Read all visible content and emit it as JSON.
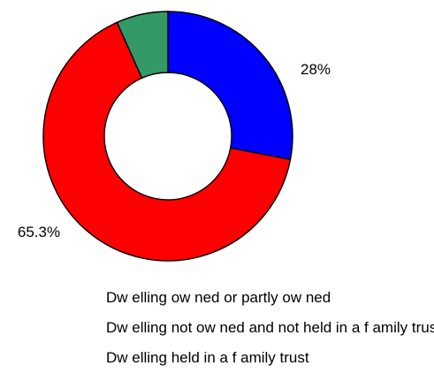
{
  "chart_data": {
    "type": "pie",
    "donut": true,
    "categories": [
      "Dw elling ow ned or partly ow ned",
      "Dw elling not ow ned and not held in a f amily trust",
      "Dw elling held in a f amily trust"
    ],
    "values": [
      28,
      65.3,
      6.7
    ],
    "value_labels": [
      "28%",
      "65.3%",
      ""
    ],
    "colors": [
      "#0000FF",
      "#FF0000",
      "#339966"
    ],
    "legend_position": "bottom",
    "start_angle": "12 o'clock",
    "direction": "clockwise"
  }
}
